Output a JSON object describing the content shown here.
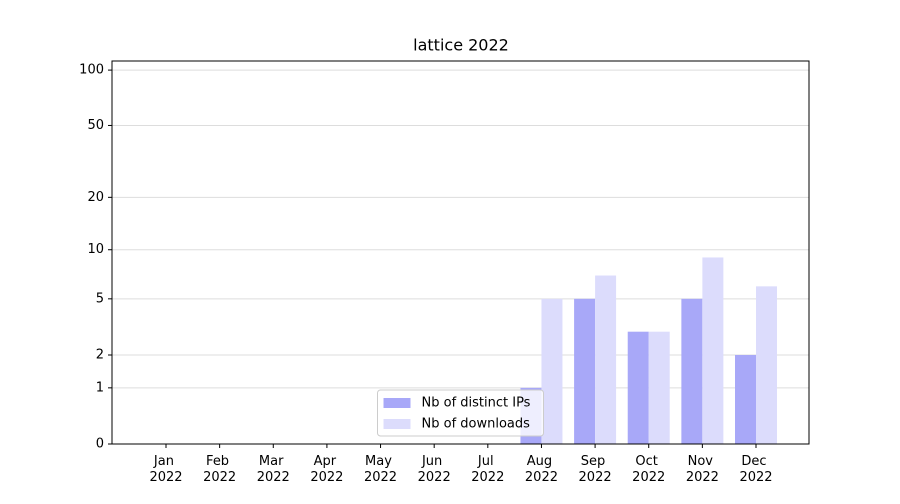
{
  "chart_data": {
    "type": "bar",
    "title": "lattice 2022",
    "categories": [
      "Jan 2022",
      "Feb 2022",
      "Mar 2022",
      "Apr 2022",
      "May 2022",
      "Jun 2022",
      "Jul 2022",
      "Aug 2022",
      "Sep 2022",
      "Oct 2022",
      "Nov 2022",
      "Dec 2022"
    ],
    "series": [
      {
        "name": "Nb of distinct IPs",
        "color": "#a8a8f8",
        "values": [
          0,
          0,
          0,
          0,
          0,
          0,
          0,
          1,
          5,
          3,
          5,
          2
        ]
      },
      {
        "name": "Nb of downloads",
        "color": "#dcdcfc",
        "values": [
          0,
          0,
          0,
          0,
          0,
          0,
          0,
          5,
          7,
          3,
          9,
          6
        ]
      }
    ],
    "yscale": "log1p",
    "ylim": [
      0,
      112
    ],
    "yticks": [
      0,
      1,
      2,
      5,
      10,
      20,
      50,
      100
    ],
    "grid": true,
    "legend": "lower center"
  }
}
